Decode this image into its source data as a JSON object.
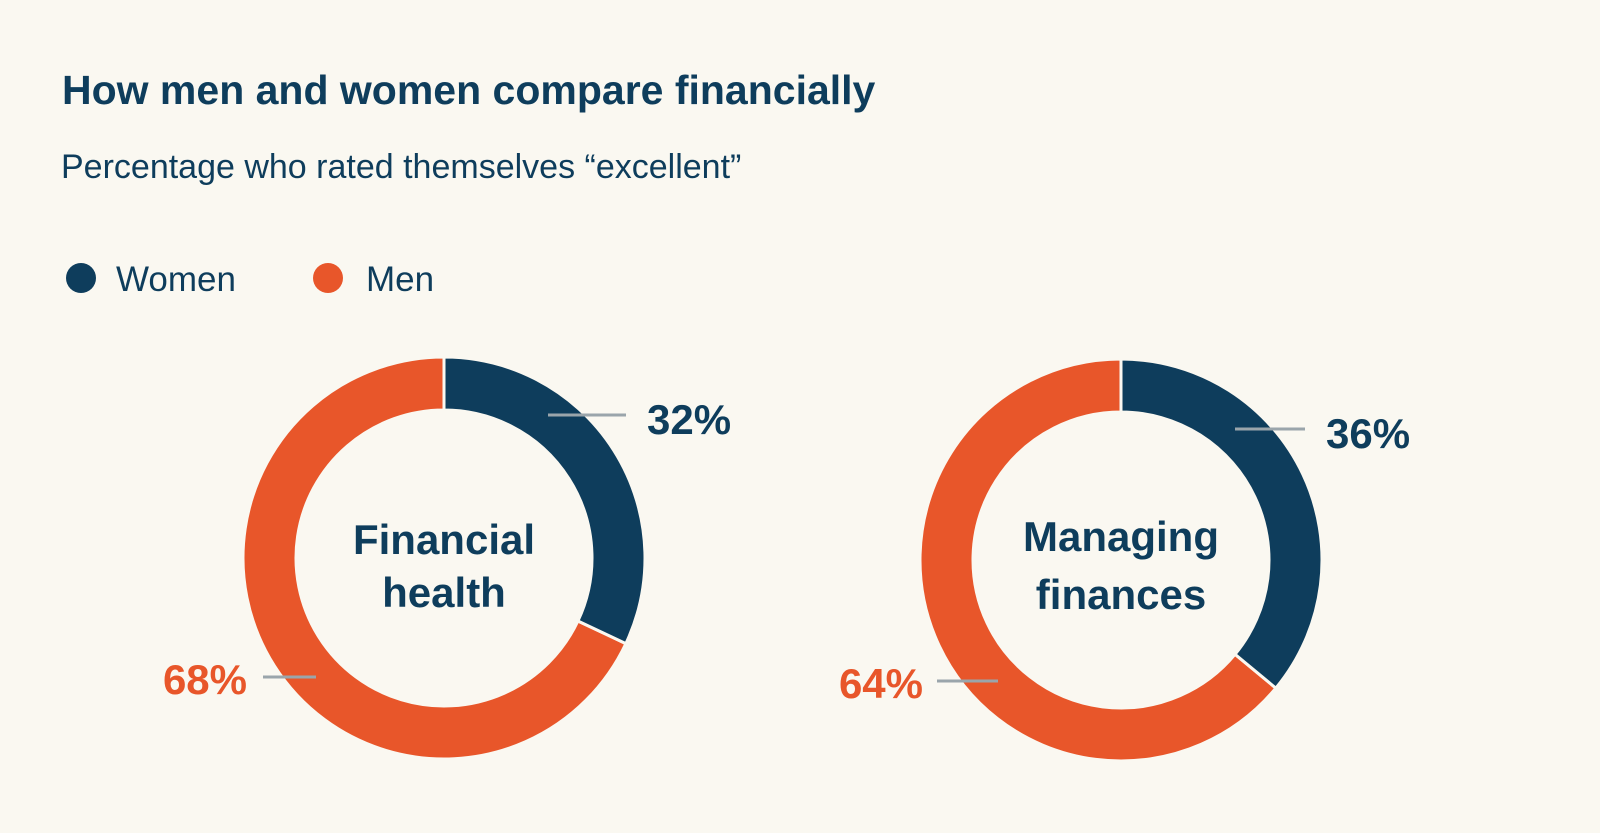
{
  "chart_data": [
    {
      "type": "pie",
      "title": "How men and women compare financially",
      "subtitle": "Percentage who rated themselves “excellent”",
      "center_label": [
        "Financial",
        "health"
      ],
      "categories": [
        "Women",
        "Men"
      ],
      "values": [
        32,
        68
      ],
      "value_labels": [
        "32%",
        "68%"
      ]
    },
    {
      "type": "pie",
      "center_label": [
        "Managing",
        "finances"
      ],
      "categories": [
        "Women",
        "Men"
      ],
      "values": [
        36,
        64
      ],
      "value_labels": [
        "36%",
        "64%"
      ]
    }
  ],
  "header": {
    "title": "How men and women compare financially",
    "subtitle": "Percentage who rated themselves “excellent”"
  },
  "legend": {
    "placement": "top-left",
    "items": [
      {
        "label": "Women",
        "color": "#0e3d5c"
      },
      {
        "label": "Men",
        "color": "#e8562a"
      }
    ]
  },
  "colors": {
    "background": "#faf8f1",
    "women": "#0e3d5c",
    "men": "#e8562a",
    "leader": "#9aa5ab"
  }
}
